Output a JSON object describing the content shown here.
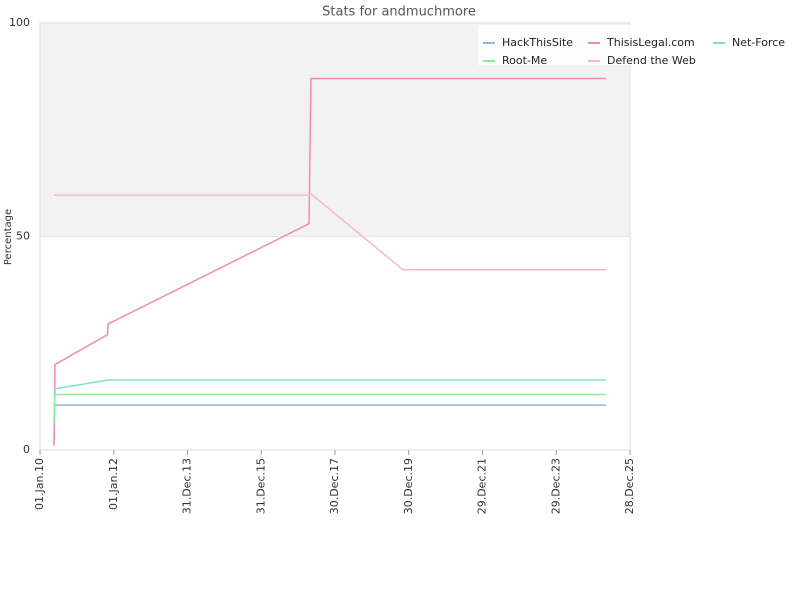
{
  "chart_data": {
    "type": "line",
    "title": "Stats for andmuchmore",
    "y_label": "Percentage",
    "xlim": [
      "2010-01-01",
      "2025-12-28"
    ],
    "xticks": [
      {
        "value": "2010-01-01",
        "label": "01.Jan.10"
      },
      {
        "value": "2012-01-01",
        "label": "01.Jan.12"
      },
      {
        "value": "2013-12-31",
        "label": "31.Dec.13"
      },
      {
        "value": "2015-12-31",
        "label": "31.Dec.15"
      },
      {
        "value": "2017-12-30",
        "label": "30.Dec.17"
      },
      {
        "value": "2019-12-30",
        "label": "30.Dec.19"
      },
      {
        "value": "2021-12-29",
        "label": "29.Dec.21"
      },
      {
        "value": "2023-12-29",
        "label": "29.Dec.23"
      },
      {
        "value": "2025-12-28",
        "label": "28.Dec.25"
      }
    ],
    "ylim": [
      0,
      100
    ],
    "yticks": [
      0,
      50,
      100
    ],
    "grid": true,
    "legend": "top-right",
    "series": [
      {
        "name": "HackThisSite",
        "color": "#8fb4e8",
        "x": [
          "2010-05-20",
          "2010-05-25",
          "2025-05-04"
        ],
        "values": [
          1.5,
          10.5,
          10.5
        ]
      },
      {
        "name": "ThisisLegal.com",
        "color": "#f08cb0",
        "x": [
          "2010-05-20",
          "2010-05-29",
          "2011-10-31",
          "2011-11-05",
          "2017-04-17",
          "2017-05-06",
          "2025-05-04"
        ],
        "values": [
          1,
          20,
          27,
          29.5,
          53,
          87,
          87
        ]
      },
      {
        "name": "Net-Force",
        "color": "#7fe0d0",
        "x": [
          "2010-05-20",
          "2010-05-29",
          "2011-11-05",
          "2025-05-04"
        ],
        "values": [
          6,
          14.3,
          16.4,
          16.4
        ]
      },
      {
        "name": "Root-Me",
        "color": "#90ee90",
        "x": [
          "2010-05-20",
          "2010-05-29",
          "2025-05-04"
        ],
        "values": [
          7,
          13,
          13
        ]
      },
      {
        "name": "Defend the Web",
        "color": "#f9b8c8",
        "x": [
          "2010-05-20",
          "2017-04-17",
          "2017-05-06",
          "2019-11-03",
          "2025-05-04"
        ],
        "values": [
          59.7,
          59.7,
          60,
          42.2,
          42.2
        ]
      }
    ]
  }
}
